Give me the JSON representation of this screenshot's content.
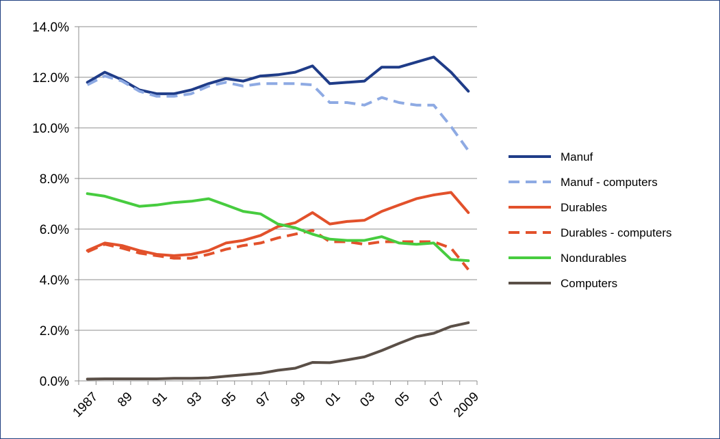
{
  "chart_data": {
    "type": "line",
    "title": "",
    "xlabel": "",
    "ylabel": "",
    "ylim": [
      0,
      14
    ],
    "y_ticks": [
      0,
      2,
      4,
      6,
      8,
      10,
      12,
      14
    ],
    "y_tick_labels": [
      "0.0%",
      "2.0%",
      "4.0%",
      "6.0%",
      "8.0%",
      "10.0%",
      "12.0%",
      "14.0%"
    ],
    "grid": "horizontal",
    "legend_position": "right",
    "x": [
      1987,
      1988,
      1989,
      1990,
      1991,
      1992,
      1993,
      1994,
      1995,
      1996,
      1997,
      1998,
      1999,
      2000,
      2001,
      2002,
      2003,
      2004,
      2005,
      2006,
      2007,
      2008,
      2009
    ],
    "x_tick_labels": [
      "1987",
      "89",
      "91",
      "93",
      "95",
      "97",
      "99",
      "01",
      "03",
      "05",
      "07",
      "2009"
    ],
    "series": [
      {
        "name": "Manuf",
        "color": "#1f3c88",
        "dash": "solid",
        "values": [
          11.8,
          12.2,
          11.9,
          11.5,
          11.35,
          11.35,
          11.5,
          11.75,
          11.95,
          11.85,
          12.05,
          12.1,
          12.2,
          12.45,
          11.75,
          11.8,
          11.85,
          12.4,
          12.4,
          12.6,
          12.8,
          12.2,
          11.45
        ]
      },
      {
        "name": "Manuf - computers",
        "color": "#8eaae3",
        "dash": "dashed",
        "values": [
          11.7,
          12.05,
          11.85,
          11.45,
          11.25,
          11.25,
          11.35,
          11.65,
          11.8,
          11.65,
          11.75,
          11.75,
          11.75,
          11.7,
          11.0,
          11.0,
          10.9,
          11.2,
          11.0,
          10.9,
          10.9,
          10.05,
          9.1
        ]
      },
      {
        "name": "Durables",
        "color": "#e2512b",
        "dash": "solid",
        "values": [
          5.15,
          5.45,
          5.35,
          5.15,
          5.0,
          4.95,
          5.0,
          5.15,
          5.45,
          5.55,
          5.75,
          6.1,
          6.25,
          6.65,
          6.2,
          6.3,
          6.35,
          6.7,
          6.95,
          7.2,
          7.35,
          7.45,
          6.65
        ]
      },
      {
        "name": "Durables - computers",
        "color": "#e2512b",
        "dash": "dashed",
        "values": [
          5.1,
          5.4,
          5.25,
          5.05,
          4.95,
          4.85,
          4.85,
          5.0,
          5.2,
          5.35,
          5.45,
          5.65,
          5.8,
          5.95,
          5.5,
          5.5,
          5.4,
          5.5,
          5.5,
          5.5,
          5.5,
          5.25,
          4.4
        ]
      },
      {
        "name": "Nondurables",
        "color": "#47cc3f",
        "dash": "solid",
        "values": [
          7.4,
          7.3,
          7.1,
          6.9,
          6.95,
          7.05,
          7.1,
          7.2,
          6.95,
          6.7,
          6.6,
          6.2,
          6.05,
          5.8,
          5.6,
          5.55,
          5.55,
          5.7,
          5.45,
          5.4,
          5.45,
          4.8,
          4.75
        ]
      },
      {
        "name": "Computers",
        "color": "#5a4f47",
        "dash": "solid",
        "values": [
          0.07,
          0.08,
          0.08,
          0.08,
          0.08,
          0.1,
          0.1,
          0.12,
          0.18,
          0.24,
          0.3,
          0.42,
          0.5,
          0.73,
          0.72,
          0.83,
          0.95,
          1.2,
          1.48,
          1.75,
          1.88,
          2.15,
          2.3
        ]
      }
    ]
  }
}
